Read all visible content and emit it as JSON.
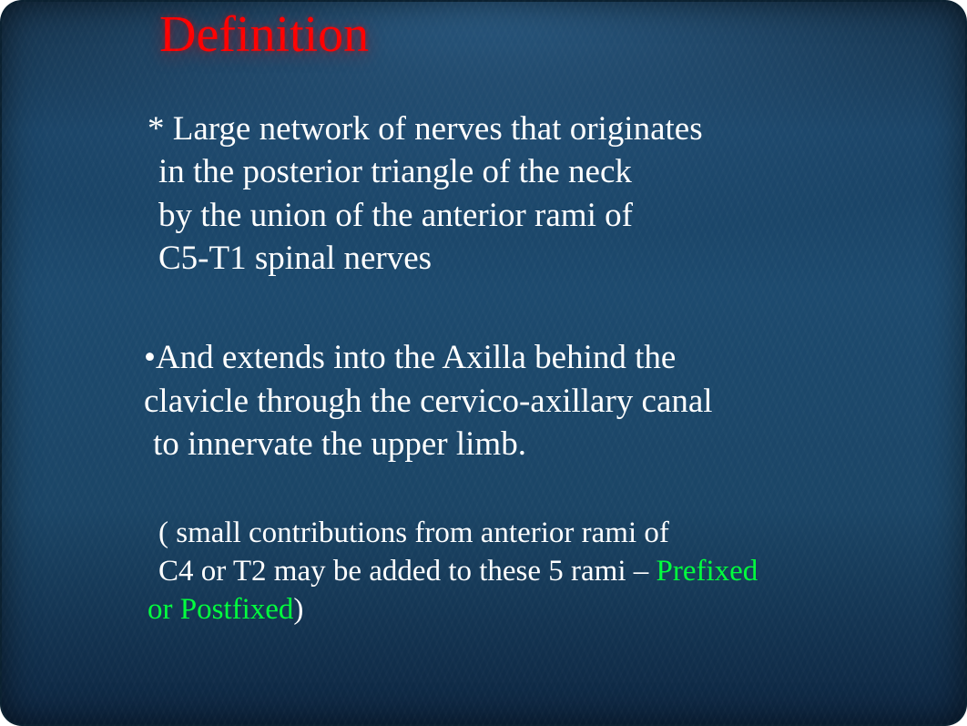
{
  "slide": {
    "title": "Definition",
    "colors": {
      "title": "#ff0000",
      "body_text": "#ffffff",
      "highlight": "#00ff3c",
      "bg_top": "#0a1a2a",
      "bg_mid": "#1d4a6e",
      "bg_bottom": "#0d2540"
    },
    "fonts": {
      "family": "Times New Roman",
      "title_size_pt": 42,
      "body_size_pt": 28,
      "note_size_pt": 25
    },
    "paragraphs": {
      "p1": {
        "bullet": "*",
        "lines": [
          "* Large network of nerves that originates",
          " in the posterior triangle of the neck",
          " by the union of the anterior rami of",
          " C5-T1 spinal nerves"
        ]
      },
      "p2": {
        "bullet": "•",
        "lines": [
          "•And extends into the Axilla behind the",
          "clavicle through the cervico-axillary canal",
          " to innervate the upper limb."
        ]
      },
      "p3": {
        "lines_plain_1": " ( small contributions from anterior rami of",
        "lines_plain_2a": " C4 or T2 may be added to these 5 rami –    ",
        "highlight_2b": "Prefixed",
        "highlight_3a": "or Postfixed",
        "lines_plain_3b": ")"
      }
    }
  }
}
